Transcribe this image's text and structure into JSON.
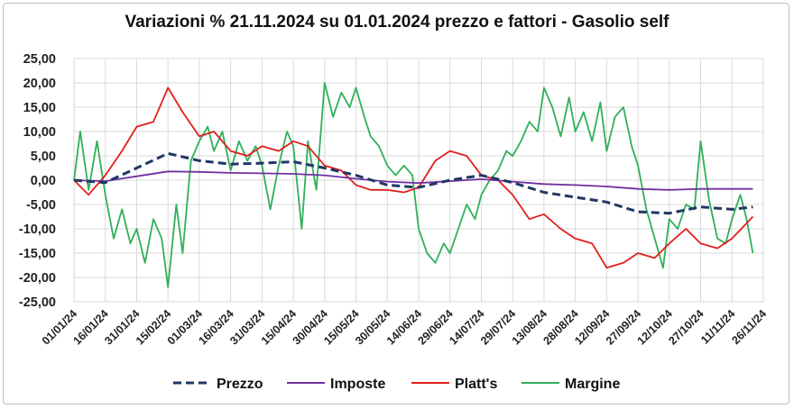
{
  "chart_data": {
    "type": "line",
    "title": "Variazioni % 21.11.2024 su 01.01.2024 prezzo e fattori - Gasolio self",
    "xlabel": "",
    "ylabel": "",
    "ylim": [
      -25,
      25
    ],
    "y_ticks": [
      "25,00",
      "20,00",
      "15,00",
      "10,00",
      "5,00",
      "0,00",
      "-5,00",
      "-10,00",
      "-15,00",
      "-20,00",
      "-25,00"
    ],
    "x_ticks": [
      "01/01/24",
      "16/01/24",
      "31/01/24",
      "15/02/24",
      "01/03/24",
      "16/03/24",
      "31/03/24",
      "15/04/24",
      "30/04/24",
      "15/05/24",
      "30/05/24",
      "14/06/24",
      "29/06/24",
      "14/07/24",
      "29/07/24",
      "13/08/24",
      "28/08/24",
      "12/09/24",
      "27/09/24",
      "12/10/24",
      "27/10/24",
      "11/11/24",
      "26/11/24"
    ],
    "grid": true,
    "legend_position": "bottom",
    "series": [
      {
        "name": "Prezzo",
        "color": "#1f3864",
        "style": "dashed",
        "x": [
          "01/01/24",
          "16/01/24",
          "31/01/24",
          "15/02/24",
          "01/03/24",
          "16/03/24",
          "31/03/24",
          "15/04/24",
          "30/04/24",
          "15/05/24",
          "30/05/24",
          "14/06/24",
          "29/06/24",
          "14/07/24",
          "29/07/24",
          "13/08/24",
          "28/08/24",
          "12/09/24",
          "27/09/24",
          "12/10/24",
          "27/10/24",
          "11/11/24",
          "21/11/24"
        ],
        "values": [
          0.0,
          -0.5,
          2.5,
          5.5,
          4.0,
          3.3,
          3.5,
          3.8,
          2.5,
          1.0,
          -1.0,
          -1.5,
          0.0,
          1.0,
          -0.5,
          -2.5,
          -3.5,
          -4.5,
          -6.5,
          -6.8,
          -5.5,
          -6.0,
          -5.5
        ]
      },
      {
        "name": "Imposte",
        "color": "#7030a0",
        "style": "solid",
        "x": [
          "01/01/24",
          "16/01/24",
          "31/01/24",
          "15/02/24",
          "01/03/24",
          "16/03/24",
          "31/03/24",
          "15/04/24",
          "30/04/24",
          "15/05/24",
          "30/05/24",
          "14/06/24",
          "29/06/24",
          "14/07/24",
          "29/07/24",
          "13/08/24",
          "28/08/24",
          "12/09/24",
          "27/09/24",
          "12/10/24",
          "27/10/24",
          "11/11/24",
          "21/11/24"
        ],
        "values": [
          0.0,
          -0.2,
          0.8,
          1.8,
          1.7,
          1.5,
          1.4,
          1.3,
          1.0,
          0.3,
          -0.3,
          -0.6,
          -0.2,
          0.2,
          -0.3,
          -0.8,
          -1.0,
          -1.3,
          -1.8,
          -2.0,
          -1.8,
          -1.8,
          -1.8
        ]
      },
      {
        "name": "Platt's",
        "color": "#e0201b",
        "style": "solid",
        "x": [
          "01/01/24",
          "08/01/24",
          "16/01/24",
          "24/01/24",
          "31/01/24",
          "08/02/24",
          "15/02/24",
          "22/02/24",
          "01/03/24",
          "08/03/24",
          "16/03/24",
          "24/03/24",
          "31/03/24",
          "08/04/24",
          "15/04/24",
          "22/04/24",
          "30/04/24",
          "08/05/24",
          "15/05/24",
          "22/05/24",
          "30/05/24",
          "07/06/24",
          "14/06/24",
          "22/06/24",
          "29/06/24",
          "07/07/24",
          "14/07/24",
          "22/07/24",
          "29/07/24",
          "06/08/24",
          "13/08/24",
          "21/08/24",
          "28/08/24",
          "05/09/24",
          "12/09/24",
          "20/09/24",
          "27/09/24",
          "05/10/24",
          "12/10/24",
          "20/10/24",
          "27/10/24",
          "04/11/24",
          "11/11/24",
          "21/11/24"
        ],
        "values": [
          0.0,
          -3.0,
          1.0,
          6.0,
          11.0,
          12.0,
          19.0,
          14.0,
          9.0,
          10.0,
          6.0,
          5.0,
          7.0,
          6.0,
          8.0,
          7.0,
          3.0,
          2.0,
          -1.0,
          -2.0,
          -2.0,
          -2.5,
          -1.5,
          4.0,
          6.0,
          5.0,
          1.0,
          0.0,
          -3.0,
          -8.0,
          -7.0,
          -10.0,
          -12.0,
          -13.0,
          -18.0,
          -17.0,
          -15.0,
          -16.0,
          -13.0,
          -10.0,
          -13.0,
          -14.0,
          -12.0,
          -7.5
        ]
      },
      {
        "name": "Margine",
        "color": "#2fb05a",
        "style": "solid",
        "x": [
          "01/01/24",
          "04/01/24",
          "08/01/24",
          "12/01/24",
          "16/01/24",
          "20/01/24",
          "24/01/24",
          "28/01/24",
          "31/01/24",
          "04/02/24",
          "08/02/24",
          "12/02/24",
          "15/02/24",
          "19/02/24",
          "22/02/24",
          "26/02/24",
          "01/03/24",
          "05/03/24",
          "08/03/24",
          "12/03/24",
          "16/03/24",
          "20/03/24",
          "24/03/24",
          "28/03/24",
          "31/03/24",
          "04/04/24",
          "08/04/24",
          "12/04/24",
          "15/04/24",
          "19/04/24",
          "22/04/24",
          "26/04/24",
          "30/04/24",
          "04/05/24",
          "08/05/24",
          "12/05/24",
          "15/05/24",
          "19/05/24",
          "22/05/24",
          "26/05/24",
          "30/05/24",
          "03/06/24",
          "07/06/24",
          "11/06/24",
          "14/06/24",
          "18/06/24",
          "22/06/24",
          "26/06/24",
          "29/06/24",
          "03/07/24",
          "07/07/24",
          "11/07/24",
          "14/07/24",
          "18/07/24",
          "22/07/24",
          "26/07/24",
          "29/07/24",
          "02/08/24",
          "06/08/24",
          "10/08/24",
          "13/08/24",
          "17/08/24",
          "21/08/24",
          "25/08/24",
          "28/08/24",
          "01/09/24",
          "05/09/24",
          "09/09/24",
          "12/09/24",
          "16/09/24",
          "20/09/24",
          "24/09/24",
          "27/09/24",
          "01/10/24",
          "05/10/24",
          "09/10/24",
          "12/10/24",
          "16/10/24",
          "20/10/24",
          "24/10/24",
          "27/10/24",
          "31/10/24",
          "04/11/24",
          "08/11/24",
          "11/11/24",
          "15/11/24",
          "18/11/24",
          "21/11/24"
        ],
        "values": [
          0.0,
          10.0,
          -2.0,
          8.0,
          -3.0,
          -12.0,
          -6.0,
          -13.0,
          -10.0,
          -17.0,
          -8.0,
          -12.0,
          -22.0,
          -5.0,
          -15.0,
          4.0,
          8.0,
          11.0,
          6.0,
          10.0,
          2.0,
          8.0,
          4.0,
          7.0,
          3.0,
          -6.0,
          3.0,
          10.0,
          7.0,
          -10.0,
          8.0,
          -2.0,
          20.0,
          13.0,
          18.0,
          15.0,
          19.0,
          13.0,
          9.0,
          7.0,
          3.0,
          1.0,
          3.0,
          1.0,
          -10.0,
          -15.0,
          -17.0,
          -13.0,
          -15.0,
          -10.0,
          -5.0,
          -8.0,
          -3.0,
          0.0,
          2.0,
          6.0,
          5.0,
          8.0,
          12.0,
          10.0,
          19.0,
          15.0,
          9.0,
          17.0,
          10.0,
          14.0,
          8.0,
          16.0,
          6.0,
          13.0,
          15.0,
          7.0,
          3.0,
          -6.0,
          -12.0,
          -18.0,
          -8.0,
          -10.0,
          -5.0,
          -6.0,
          8.0,
          -4.0,
          -12.0,
          -13.0,
          -8.0,
          -3.0,
          -8.0,
          -15.0
        ]
      }
    ]
  }
}
